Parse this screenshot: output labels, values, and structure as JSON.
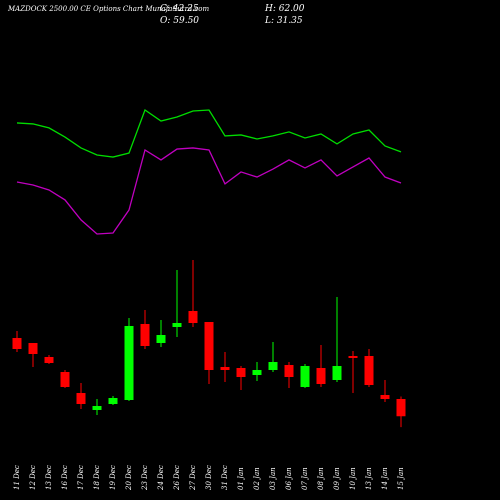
{
  "chart_data": [
    {
      "type": "candlestick",
      "title": "MAZDOCK 2500.00 CE Options Chart MunafaSutra.com",
      "ohlc_labels": {
        "close": "C: 42.25",
        "high": "H: 62.00",
        "open": "O: 59.50",
        "low": "L: 31.35"
      },
      "categories": [
        "11 Dec",
        "12 Dec",
        "13 Dec",
        "16 Dec",
        "17 Dec",
        "18 Dec",
        "19 Dec",
        "20 Dec",
        "23 Dec",
        "24 Dec",
        "26 Dec",
        "27 Dec",
        "30 Dec",
        "31 Dec",
        "01 Jan",
        "02 Jan",
        "03 Jan",
        "06 Jan",
        "07 Jan",
        "08 Jan",
        "09 Jan",
        "10 Jan",
        "13 Jan",
        "14 Jan",
        "15 Jan"
      ],
      "open": [
        120.5,
        115.5,
        101.5,
        86.5,
        65.5,
        48.5,
        54.5,
        58.5,
        134.5,
        115.5,
        131.5,
        147.5,
        136.5,
        91.5,
        90.5,
        83.5,
        88.5,
        93.5,
        71.5,
        90.5,
        78.5,
        102.5,
        102.5,
        63.5,
        59.5
      ],
      "high": [
        127.5,
        115.5,
        103.5,
        88.5,
        75.5,
        59.5,
        62.5,
        140.5,
        148.5,
        138.5,
        188.5,
        198.5,
        136.5,
        106.5,
        92.5,
        96.5,
        116.5,
        96.5,
        94.5,
        113.5,
        161.5,
        107.5,
        109.5,
        78.5,
        62
      ],
      "low": [
        106.5,
        91.5,
        94.5,
        70.5,
        49.5,
        43.5,
        53.5,
        57.5,
        109.5,
        111.5,
        121.5,
        131.5,
        74.5,
        76.5,
        68.5,
        77.5,
        86.5,
        70.5,
        70.5,
        71.5,
        76.5,
        65.5,
        71.5,
        56.5,
        31.35
      ],
      "close": [
        109.5,
        104.5,
        95.5,
        71.5,
        54.5,
        52.5,
        60.5,
        132.5,
        112.5,
        123.5,
        135.5,
        135.5,
        88.5,
        88.5,
        81.5,
        88.5,
        96.5,
        81.5,
        92.5,
        74.5,
        92.5,
        100.5,
        73.5,
        59.5,
        42.25
      ],
      "up_color": "#00ff00",
      "down_color": "#ff0000",
      "ylim": [
        0,
        260
      ]
    },
    {
      "type": "line",
      "series": [
        {
          "color": "#00dd00",
          "values": [
            79.4,
            78.8,
            76.3,
            70.6,
            63.8,
            59.4,
            58.1,
            60.6,
            87.5,
            80.6,
            83.1,
            86.9,
            87.5,
            71.3,
            71.9,
            69.4,
            71.3,
            73.8,
            70,
            72.5,
            66.3,
            72.5,
            75,
            65,
            61.3
          ]
        },
        {
          "color": "#c000c0",
          "values": [
            42.5,
            40.6,
            37.5,
            31.3,
            18.8,
            10,
            10.6,
            25,
            62.5,
            56.3,
            63.1,
            63.8,
            62.5,
            41.3,
            48.8,
            45.6,
            50.6,
            56.3,
            51.3,
            56.3,
            46.3,
            51.9,
            57.5,
            45.6,
            41.9
          ]
        }
      ],
      "ylim": [
        0,
        100
      ]
    }
  ]
}
